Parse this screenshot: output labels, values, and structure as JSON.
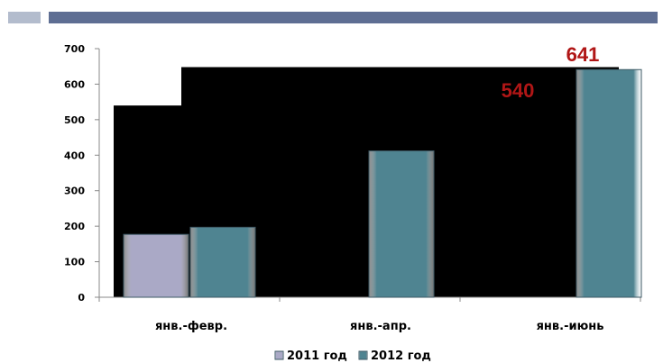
{
  "chart_data": {
    "type": "bar",
    "title": "",
    "xlabel": "",
    "ylabel": "",
    "categories": [
      "янв.-февр.",
      "янв.-апр.",
      "янв.-июнь"
    ],
    "series": [
      {
        "name": "2011 год",
        "color": "#aaa9c6",
        "values": [
          177,
          null,
          null
        ]
      },
      {
        "name": "2012 год",
        "color": "#4f8491",
        "values": [
          197,
          412,
          641
        ]
      }
    ],
    "ylim": [
      0,
      700
    ],
    "yticks": [
      0,
      100,
      200,
      300,
      400,
      500,
      600,
      700
    ],
    "annotations": [
      {
        "text": "641",
        "value": 641
      },
      {
        "text": "540",
        "value": 540
      }
    ],
    "legend_position": "bottom",
    "grid": false,
    "background_shape_color": "#000000",
    "background_levels": [
      540,
      648
    ]
  }
}
